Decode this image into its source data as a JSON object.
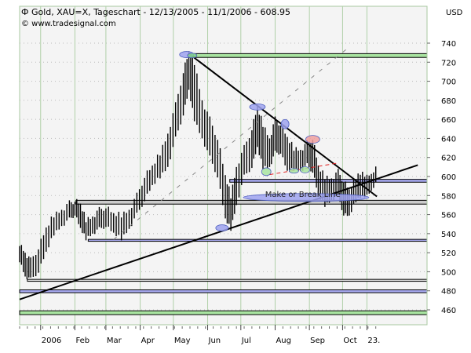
{
  "chart_data": {
    "type": "ohlc-bar",
    "title": "Gold, XAU=X, Tageschart - 12/13/2005 - 11/1/2006 - 608.95",
    "source": "© www.tradesignal.com",
    "currency": "USD",
    "ylim": [
      450,
      760
    ],
    "yticks": [
      460,
      480,
      500,
      520,
      540,
      560,
      580,
      600,
      620,
      640,
      660,
      680,
      700,
      720,
      740
    ],
    "x_unit": "days since 2005-12-13",
    "xlim": [
      0,
      368
    ],
    "xticks": [
      {
        "label": "2006",
        "day": 19
      },
      {
        "label": "Feb",
        "day": 50
      },
      {
        "label": "Mar",
        "day": 78
      },
      {
        "label": "Apr",
        "day": 109
      },
      {
        "label": "May",
        "day": 139
      },
      {
        "label": "Jun",
        "day": 170
      },
      {
        "label": "Jul",
        "day": 200
      },
      {
        "label": "Aug",
        "day": 231
      },
      {
        "label": "Sep",
        "day": 262
      },
      {
        "label": "Oct",
        "day": 292
      },
      {
        "label": "23.",
        "day": 314
      }
    ],
    "grid": true,
    "bars": [
      [
        0,
        530,
        512
      ],
      [
        5,
        520,
        495
      ],
      [
        10,
        512,
        492
      ],
      [
        17,
        525,
        500
      ],
      [
        24,
        545,
        520
      ],
      [
        31,
        560,
        540
      ],
      [
        38,
        565,
        548
      ],
      [
        45,
        572,
        555
      ],
      [
        50,
        575,
        560
      ],
      [
        55,
        570,
        545
      ],
      [
        60,
        555,
        535
      ],
      [
        66,
        558,
        540
      ],
      [
        72,
        565,
        545
      ],
      [
        78,
        568,
        548
      ],
      [
        85,
        560,
        540
      ],
      [
        92,
        560,
        535
      ],
      [
        99,
        565,
        545
      ],
      [
        106,
        580,
        560
      ],
      [
        113,
        600,
        575
      ],
      [
        120,
        610,
        590
      ],
      [
        127,
        625,
        600
      ],
      [
        134,
        645,
        610
      ],
      [
        141,
        675,
        640
      ],
      [
        148,
        710,
        665
      ],
      [
        153,
        730,
        690
      ],
      [
        158,
        720,
        660
      ],
      [
        165,
        680,
        640
      ],
      [
        172,
        660,
        620
      ],
      [
        179,
        640,
        600
      ],
      [
        186,
        600,
        555
      ],
      [
        191,
        580,
        545
      ],
      [
        196,
        610,
        570
      ],
      [
        203,
        630,
        600
      ],
      [
        210,
        650,
        610
      ],
      [
        215,
        672,
        630
      ],
      [
        220,
        655,
        610
      ],
      [
        226,
        640,
        610
      ],
      [
        231,
        660,
        625
      ],
      [
        236,
        655,
        625
      ],
      [
        242,
        640,
        605
      ],
      [
        248,
        630,
        608
      ],
      [
        254,
        628,
        606
      ],
      [
        260,
        635,
        612
      ],
      [
        265,
        640,
        605
      ],
      [
        270,
        610,
        580
      ],
      [
        276,
        600,
        570
      ],
      [
        282,
        598,
        575
      ],
      [
        288,
        605,
        580
      ],
      [
        293,
        595,
        560
      ],
      [
        298,
        585,
        558
      ],
      [
        304,
        600,
        575
      ],
      [
        310,
        605,
        580
      ],
      [
        316,
        598,
        580
      ],
      [
        322,
        612,
        595
      ]
    ],
    "bands": [
      {
        "from_day": 153,
        "top": 729,
        "bottom": 725,
        "color": "#a8e4a0"
      },
      {
        "from_day": 190,
        "top": 597,
        "bottom": 594,
        "color": "#a8aaf0"
      },
      {
        "from_day": 51,
        "top": 575,
        "bottom": 571,
        "color": "#cccccc"
      },
      {
        "from_day": 62,
        "top": 534,
        "bottom": 532,
        "color": "#a8aaf0"
      },
      {
        "from_day": 7,
        "top": 492,
        "bottom": 490,
        "color": "#dddddd"
      },
      {
        "from_day": 0,
        "top": 481,
        "bottom": 478,
        "color": "#a8aaf0"
      },
      {
        "from_day": 0,
        "top": 459,
        "bottom": 455,
        "color": "#a8e4a0"
      }
    ],
    "trendlines": [
      {
        "name": "downtrend",
        "from": [
          153,
          729
        ],
        "to": [
          323,
          579
        ],
        "color": "#000000",
        "style": "solid"
      },
      {
        "name": "uptrend",
        "from": [
          0,
          471
        ],
        "to": [
          360,
          612
        ],
        "color": "#000000",
        "style": "solid"
      },
      {
        "name": "channel",
        "from": [
          85,
          534
        ],
        "to": [
          298,
          736
        ],
        "color": "#888888",
        "style": "dashed"
      },
      {
        "name": "neckline",
        "from": [
          226,
          602
        ],
        "to": [
          287,
          614
        ],
        "color": "#e02020",
        "style": "dashed"
      }
    ],
    "markers": [
      {
        "day": 151,
        "price": 728,
        "color": "#9ea2ee",
        "rx": 9,
        "ry": 4
      },
      {
        "day": 156,
        "price": 727,
        "color": "#7fcf8a",
        "rx": 6,
        "ry": 3
      },
      {
        "day": 215,
        "price": 673,
        "color": "#9ea2ee",
        "rx": 10,
        "ry": 4
      },
      {
        "day": 240,
        "price": 655,
        "color": "#9ea2ee",
        "rx": 5,
        "ry": 6
      },
      {
        "day": 265,
        "price": 639,
        "color": "#f0a0a0",
        "rx": 9,
        "ry": 5
      },
      {
        "day": 223,
        "price": 605,
        "color": "#a8e4a0",
        "rx": 6,
        "ry": 5
      },
      {
        "day": 248,
        "price": 606,
        "color": "#a8e4a0",
        "rx": 6,
        "ry": 3
      },
      {
        "day": 258,
        "price": 607,
        "color": "#a8e4a0",
        "rx": 6,
        "ry": 4
      },
      {
        "day": 183,
        "price": 546,
        "color": "#9ea2ee",
        "rx": 8,
        "ry": 4
      },
      {
        "day": 259,
        "price": 578,
        "color": "#9ea2ee",
        "rx": 80,
        "ry": 5
      }
    ],
    "annotation": {
      "text": "Make or Break Line",
      "day": 222,
      "price": 581
    }
  }
}
